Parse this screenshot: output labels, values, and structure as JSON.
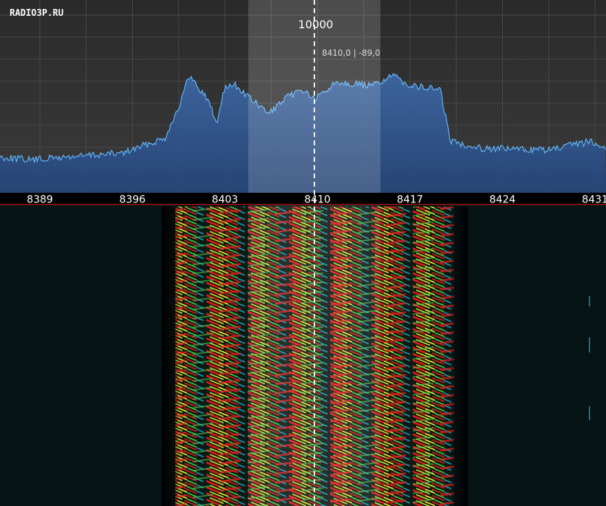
{
  "watermark": "RADIO3P.RU",
  "bandwidth_label": "10000",
  "cursor_readout": "8410,0 | -89,0",
  "frequency_axis": {
    "labels": [
      "8389",
      "8396",
      "8403",
      "8410",
      "8417",
      "8424",
      "8431"
    ]
  }
}
